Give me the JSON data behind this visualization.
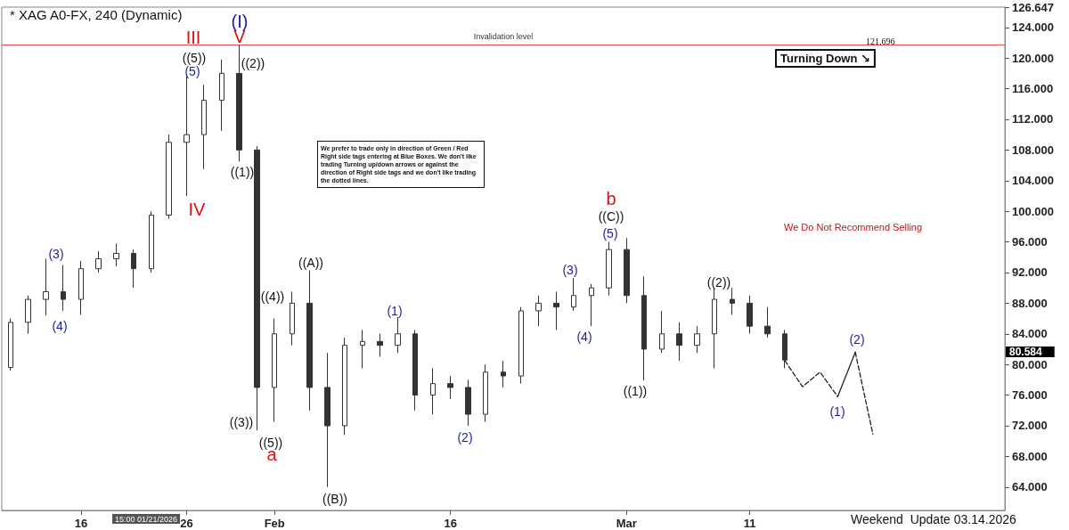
{
  "chart_data": {
    "type": "candlestick",
    "title": "* XAG A0-FX, 240 (Dynamic)",
    "categories": [
      null,
      null,
      null,
      null,
      "16",
      null,
      null,
      null,
      null,
      null,
      "26",
      null,
      null,
      null,
      null,
      "Feb",
      null,
      null,
      null,
      null,
      null,
      null,
      null,
      null,
      null,
      "16",
      null,
      null,
      null,
      null,
      null,
      null,
      null,
      null,
      null,
      "Mar",
      null,
      null,
      null,
      null,
      null,
      null,
      "11",
      null,
      null,
      null,
      null,
      null,
      null,
      null,
      null,
      null,
      null,
      null,
      null,
      null,
      null
    ],
    "ohlc": [
      [
        79.6,
        86.0,
        79.2,
        85.5
      ],
      [
        85.5,
        89.0,
        84.0,
        88.5
      ],
      [
        88.5,
        93.8,
        86.4,
        89.5
      ],
      [
        89.5,
        93.0,
        87.0,
        88.5
      ],
      [
        88.5,
        93.5,
        86.5,
        92.5
      ],
      [
        92.5,
        94.8,
        92.0,
        93.8
      ],
      [
        93.8,
        95.8,
        92.8,
        94.5
      ],
      [
        94.5,
        95.0,
        90.0,
        92.5
      ],
      [
        92.5,
        100.0,
        92.0,
        99.5
      ],
      [
        99.5,
        110.0,
        99.0,
        109.0
      ],
      [
        109.0,
        117.7,
        102.0,
        110.0
      ],
      [
        110.0,
        116.5,
        105.5,
        114.5
      ],
      [
        114.5,
        119.8,
        110.5,
        118.0
      ],
      [
        118.0,
        121.696,
        106.5,
        108.0
      ],
      [
        108.0,
        108.5,
        71.4,
        77.0
      ],
      [
        77.0,
        86.0,
        72.5,
        84.0
      ],
      [
        84.0,
        89.5,
        82.5,
        88.0
      ],
      [
        88.0,
        92.3,
        74.0,
        77.0
      ],
      [
        77.0,
        81.5,
        64.0,
        72.0
      ],
      [
        72.0,
        83.5,
        70.8,
        82.5
      ],
      [
        82.5,
        84.5,
        79.5,
        83.0
      ],
      [
        83.0,
        84.0,
        81.0,
        82.5
      ],
      [
        82.5,
        86.2,
        81.5,
        84.0
      ],
      [
        84.0,
        84.5,
        74.0,
        76.0
      ],
      [
        76.0,
        79.5,
        73.5,
        77.5
      ],
      [
        77.5,
        78.5,
        75.5,
        77.0
      ],
      [
        77.0,
        78.0,
        72.0,
        73.5
      ],
      [
        73.5,
        80.0,
        72.5,
        79.0
      ],
      [
        79.0,
        80.5,
        77.0,
        78.5
      ],
      [
        78.5,
        87.5,
        77.5,
        87.0
      ],
      [
        87.0,
        89.0,
        85.0,
        88.0
      ],
      [
        88.0,
        89.5,
        84.5,
        87.5
      ],
      [
        87.5,
        91.3,
        87.0,
        89.0
      ],
      [
        89.0,
        90.5,
        85.0,
        90.0
      ],
      [
        90.0,
        96.0,
        89.0,
        95.0
      ],
      [
        95.0,
        96.5,
        88.0,
        89.0
      ],
      [
        89.0,
        91.5,
        77.9,
        82.0
      ],
      [
        82.0,
        87.0,
        81.5,
        84.0
      ],
      [
        84.0,
        85.5,
        80.5,
        82.5
      ],
      [
        82.5,
        85.0,
        81.5,
        84.0
      ],
      [
        84.0,
        90.0,
        79.5,
        88.5
      ],
      [
        88.5,
        90.0,
        86.5,
        88.0
      ],
      [
        88.0,
        89.0,
        84.0,
        85.0
      ],
      [
        85.0,
        87.5,
        83.5,
        84.0
      ],
      [
        84.0,
        84.5,
        79.5,
        80.584
      ],
      null,
      null,
      null,
      null,
      null,
      null,
      null,
      null,
      null,
      null,
      null,
      null
    ],
    "color": "#333333",
    "series": [
      {
        "type": "line",
        "color": "#222222",
        "line_style": "dashed",
        "values": [
          null,
          null,
          null,
          null,
          null,
          null,
          null,
          null,
          null,
          null,
          null,
          null,
          null,
          null,
          null,
          null,
          null,
          null,
          null,
          null,
          null,
          null,
          null,
          null,
          null,
          null,
          null,
          null,
          null,
          null,
          null,
          null,
          null,
          null,
          null,
          null,
          null,
          null,
          null,
          null,
          null,
          null,
          null,
          null,
          80.5,
          77.1,
          79.0,
          75.8,
          null,
          null,
          null,
          null,
          null,
          null,
          null,
          null,
          null
        ]
      },
      {
        "type": "line",
        "color": "#222222",
        "line_style": "solid",
        "values": [
          null,
          null,
          null,
          null,
          null,
          null,
          null,
          null,
          null,
          null,
          null,
          null,
          null,
          null,
          null,
          null,
          null,
          null,
          null,
          null,
          null,
          null,
          null,
          null,
          null,
          null,
          null,
          null,
          null,
          null,
          null,
          null,
          null,
          null,
          null,
          null,
          null,
          null,
          null,
          null,
          null,
          null,
          null,
          null,
          null,
          null,
          null,
          75.8,
          81.6,
          null,
          null,
          null,
          null,
          null,
          null,
          null,
          null
        ]
      },
      {
        "type": "line",
        "color": "#222222",
        "line_style": "dashed",
        "values": [
          null,
          null,
          null,
          null,
          null,
          null,
          null,
          null,
          null,
          null,
          null,
          null,
          null,
          null,
          null,
          null,
          null,
          null,
          null,
          null,
          null,
          null,
          null,
          null,
          null,
          null,
          null,
          null,
          null,
          null,
          null,
          null,
          null,
          null,
          null,
          null,
          null,
          null,
          null,
          null,
          null,
          null,
          null,
          null,
          null,
          null,
          null,
          null,
          81.6,
          70.9,
          null,
          null,
          null,
          null,
          null,
          null,
          null
        ]
      }
    ],
    "ylim": [
      60.95,
      126.647
    ],
    "yticks": [
      {
        "value": 64,
        "label": "64.000"
      },
      {
        "value": 68,
        "label": "68.000"
      },
      {
        "value": 72,
        "label": "72.000"
      },
      {
        "value": 76,
        "label": "76.000"
      },
      {
        "value": 80,
        "label": "80.000"
      },
      {
        "value": 84,
        "label": "84.000"
      },
      {
        "value": 88,
        "label": "88.000"
      },
      {
        "value": 92,
        "label": "92.000"
      },
      {
        "value": 96,
        "label": "96.000"
      },
      {
        "value": 100,
        "label": "100.000"
      },
      {
        "value": 104,
        "label": "104.000"
      },
      {
        "value": 108,
        "label": "108.000"
      },
      {
        "value": 112,
        "label": "112.000"
      },
      {
        "value": 116,
        "label": "116.000"
      },
      {
        "value": 120,
        "label": "120.000"
      },
      {
        "value": 124,
        "label": "124.000"
      },
      {
        "value": 126.647,
        "label": "126.647"
      }
    ],
    "ref_lines": [
      {
        "axis": "y",
        "value": 121.696,
        "label": "Invalidation level",
        "color": "#e05050"
      }
    ],
    "annotations": [
      "We prefer to trade only in direction of Green / Red Right side tags entering at Blue Boxes. We don't like trading Turning up/down arrows or against the direction of Right side tags and we don't like trading the dotted lines.",
      "Turning Down ↘",
      "We Do Not Recommend Selling",
      "Weekend  Update 03.14.2026",
      "15:00 01/21/2026",
      "121.696",
      "80.584",
      "(I)",
      "(3)",
      "(4)",
      "(5)",
      "(1)",
      "(2)",
      "(3)",
      "(4)",
      "(5)",
      "(1)",
      "(2)",
      "((5))",
      "((2))",
      "((1))",
      "((4))",
      "((3))",
      "((5))",
      "((A))",
      "((B))",
      "((C))",
      "((1))",
      "((2))",
      "III",
      "IV",
      "V",
      "a",
      "b"
    ],
    "grid": false
  }
}
